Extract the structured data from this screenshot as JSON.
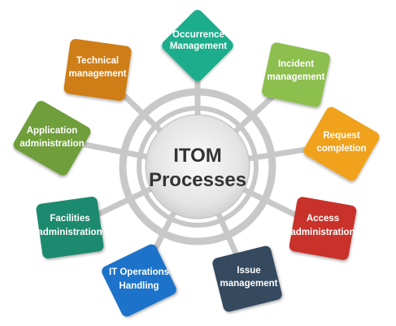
{
  "center": {
    "line1": "ITOM",
    "line2": "Processes"
  },
  "nodes": [
    {
      "id": "occurrence",
      "line1": "Occurrence",
      "line2": "Management",
      "color": "#1aae8c"
    },
    {
      "id": "incident",
      "line1": "Incident",
      "line2": "management",
      "color": "#8cbf4e"
    },
    {
      "id": "request",
      "line1": "Request",
      "line2": "completion",
      "color": "#f0a21f"
    },
    {
      "id": "access",
      "line1": "Access",
      "line2": "administration",
      "color": "#c8312a"
    },
    {
      "id": "issue",
      "line1": "Issue",
      "line2": "management",
      "color": "#34495e"
    },
    {
      "id": "itops",
      "line1": "IT Operations",
      "line2": "Handling",
      "color": "#1f73c9"
    },
    {
      "id": "facilities",
      "line1": "Facilities",
      "line2": "administration",
      "color": "#1e8a6e"
    },
    {
      "id": "application",
      "line1": "Application",
      "line2": "administration",
      "color": "#6f9e3a"
    },
    {
      "id": "technical",
      "line1": "Technical",
      "line2": "management",
      "color": "#cf7d17"
    }
  ]
}
